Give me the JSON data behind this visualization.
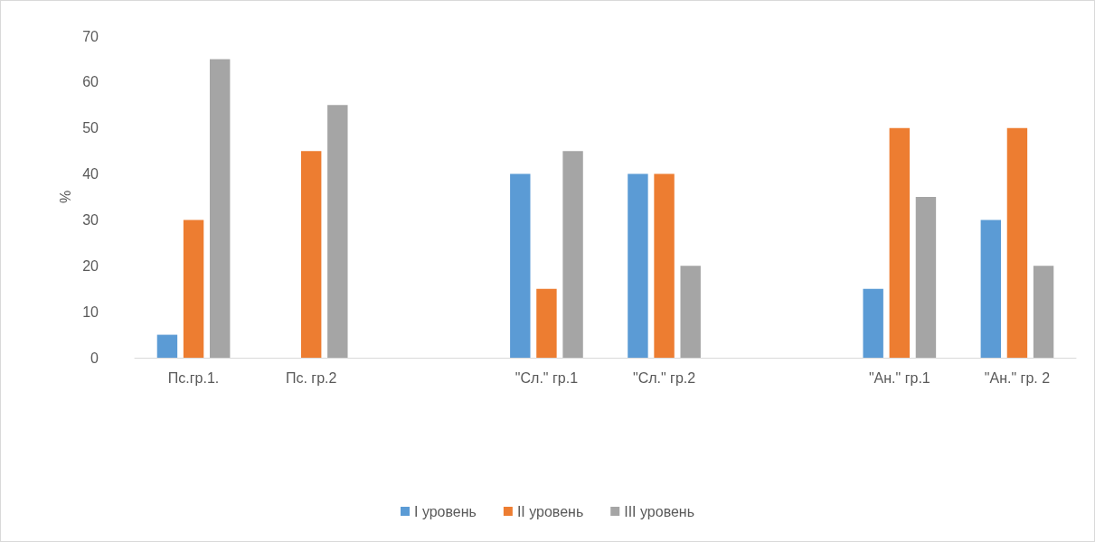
{
  "chart_data": {
    "type": "bar",
    "ylabel": "%",
    "categories": [
      "Пс.гр.1.",
      "Пс. гр.2",
      null,
      "\"Сл.\" гр.1",
      "\"Сл.\" гр.2",
      null,
      "\"Ан.\" гр.1",
      "\"Ан.\" гр. 2"
    ],
    "series": [
      {
        "name": "I уровень",
        "color": "#5b9bd5",
        "values": [
          5,
          0,
          null,
          40,
          40,
          null,
          15,
          30
        ]
      },
      {
        "name": "II уровень",
        "color": "#ed7d31",
        "values": [
          30,
          45,
          null,
          15,
          40,
          null,
          50,
          50
        ]
      },
      {
        "name": "III уровень",
        "color": "#a5a5a5",
        "values": [
          65,
          55,
          null,
          45,
          20,
          null,
          35,
          20
        ]
      }
    ],
    "ylim": [
      0,
      70
    ],
    "yticks": [
      0,
      10,
      20,
      30,
      40,
      50,
      60,
      70
    ],
    "grid": false,
    "legend": "bottom"
  }
}
